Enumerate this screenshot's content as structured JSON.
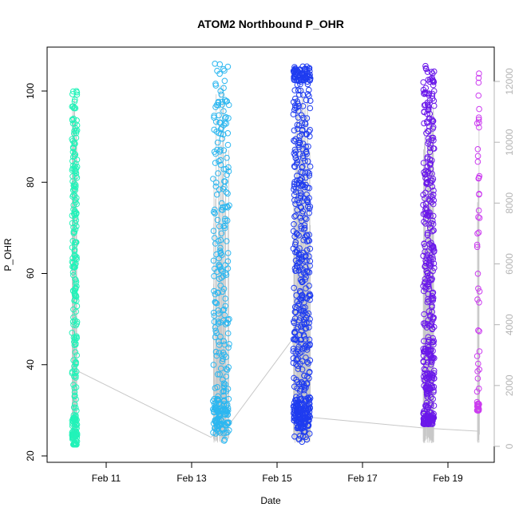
{
  "chart_data": {
    "type": "scatter",
    "title": "ATOM2 Northbound P_OHR",
    "xlabel": "Date",
    "ylabel": "P_OHR",
    "x_ticks": [
      "Feb 11",
      "Feb 13",
      "Feb 15",
      "Feb 17",
      "Feb 19"
    ],
    "y_ticks": [
      "20",
      "40",
      "60",
      "80",
      "100"
    ],
    "y2_ticks": [
      "0",
      "2000",
      "4000",
      "6000",
      "8000",
      "10000",
      "12000"
    ],
    "ylim": [
      20,
      108
    ],
    "y2lim": [
      0,
      12500
    ],
    "grid": false,
    "colors": {
      "cluster_1": "#22f3b9",
      "cluster_2": "#2cb7f0",
      "cluster_3": "#1f3cf0",
      "cluster_4": "#6a18ea",
      "cluster_5": "#cc3cf0",
      "trend_line": "#c8c8c8",
      "secondary_axis": "#b4b4b4"
    },
    "series": [
      {
        "x_start": "Feb 10 (late)",
        "x_end": "Feb 10 (late)",
        "y_min": 22.5,
        "y_max": 100,
        "approx_points": 260
      },
      {
        "x_start": "Feb 13 (late)",
        "x_end": "Feb 13 (late)",
        "y_min": 22.5,
        "y_max": 106,
        "approx_points": 300
      },
      {
        "x_start": "Feb 15 (mid)",
        "x_end": "Feb 15 (late)",
        "y_min": 23,
        "y_max": 105.5,
        "approx_points": 560
      },
      {
        "x_start": "Feb 18 (late)",
        "x_end": "Feb 18 (late)",
        "y_min": 27,
        "y_max": 105.5,
        "approx_points": 420
      },
      {
        "x_start": "Feb 19 (late)",
        "x_end": "Feb 19 (late)",
        "y_min": 30,
        "y_max": 104,
        "approx_points": 60
      }
    ],
    "trend_line": {
      "axis": "secondary",
      "x": [
        "Feb 10.3",
        "Feb 13.45",
        "Feb 13.9",
        "Feb 15.35",
        "Feb 15.8",
        "Feb 18.45",
        "Feb 19.7"
      ],
      "y": [
        2500,
        300,
        750,
        3500,
        950,
        600,
        500
      ]
    }
  }
}
